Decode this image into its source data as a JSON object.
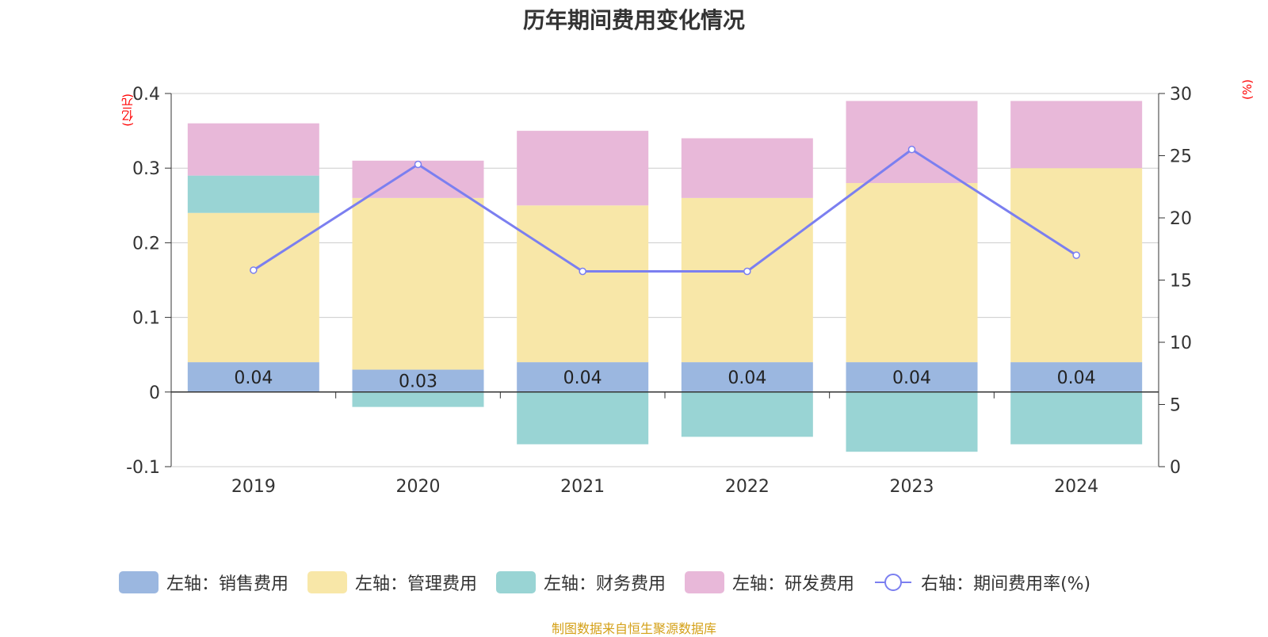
{
  "title": "历年期间费用变化情况",
  "source_note": "制图数据来自恒生聚源数据库",
  "chart_data": {
    "type": "bar",
    "stacked": true,
    "title": "历年期间费用变化情况",
    "categories": [
      "2019",
      "2020",
      "2021",
      "2022",
      "2023",
      "2024"
    ],
    "y_left": {
      "unit": "(亿元)",
      "ylim": [
        -0.1,
        0.4
      ],
      "ticks": [
        "0.4",
        "0.3",
        "0.2",
        "0.1",
        "0",
        "-0.1"
      ],
      "tick_values": [
        0.4,
        0.3,
        0.2,
        0.1,
        0,
        -0.1
      ]
    },
    "y_right": {
      "unit": "(%)",
      "ylim": [
        0,
        30
      ],
      "ticks": [
        "30",
        "25",
        "20",
        "15",
        "10",
        "5",
        "0"
      ],
      "tick_values": [
        30,
        25,
        20,
        15,
        10,
        5,
        0
      ]
    },
    "series": [
      {
        "name": "左轴：销售费用",
        "color": "#9bb7e0",
        "axis": "left",
        "values": [
          0.04,
          0.03,
          0.04,
          0.04,
          0.04,
          0.04
        ],
        "labels": [
          "0.04",
          "0.03",
          "0.04",
          "0.04",
          "0.04",
          "0.04"
        ]
      },
      {
        "name": "左轴：管理费用",
        "color": "#f8e7a8",
        "axis": "left",
        "values": [
          0.2,
          0.23,
          0.21,
          0.22,
          0.24,
          0.26
        ]
      },
      {
        "name": "左轴：财务费用",
        "color": "#99d4d4",
        "axis": "left",
        "values": [
          0.05,
          -0.02,
          -0.07,
          -0.06,
          -0.08,
          -0.07
        ]
      },
      {
        "name": "左轴：研发费用",
        "color": "#e8b8d9",
        "axis": "left",
        "values": [
          0.07,
          0.05,
          0.1,
          0.08,
          0.11,
          0.09
        ]
      },
      {
        "name": "右轴：期间费用率(%)",
        "color": "#7b7ff0",
        "axis": "right",
        "type": "line",
        "values": [
          15.8,
          24.3,
          15.7,
          15.7,
          25.5,
          17.0
        ]
      }
    ],
    "grid": true,
    "legend_position": "bottom"
  }
}
